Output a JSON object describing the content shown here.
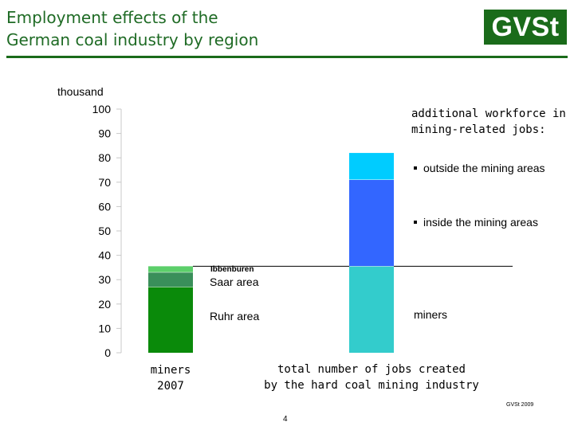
{
  "header": {
    "title_line1": "Employment effects of the",
    "title_line2": "German coal industry by region",
    "logo_text": "GVSt"
  },
  "chart_data": {
    "type": "bar",
    "unit_label": "thousand",
    "ylim": [
      0,
      100
    ],
    "yticks": [
      0,
      10,
      20,
      30,
      40,
      50,
      60,
      70,
      80,
      90,
      100
    ],
    "categories": [
      "miners 2007",
      "total number of jobs created by the hard coal mining industry"
    ],
    "bars": [
      {
        "name": "miners 2007",
        "segments": [
          {
            "name": "Ruhr area",
            "value": 27,
            "color": "#0a8a0a"
          },
          {
            "name": "Saar area",
            "value": 6,
            "color": "#3a8f5a"
          },
          {
            "name": "Ibbenburen",
            "value": 2.5,
            "color": "#5ccf6a"
          }
        ]
      },
      {
        "name": "total number of jobs created by the hard coal mining industry",
        "segments": [
          {
            "name": "miners",
            "value": 35.5,
            "color": "#33cccc"
          },
          {
            "name": "inside the mining areas",
            "value": 35.5,
            "color": "#3366ff"
          },
          {
            "name": "outside the mining areas",
            "value": 11,
            "color": "#00ccff"
          }
        ]
      }
    ],
    "reference_line": 35.5,
    "grid": false
  },
  "labels": {
    "ibbenburen": "Ibbenburen",
    "saar": "Saar area",
    "ruhr": "Ruhr area",
    "miners": "miners",
    "additional_line1": "additional workforce in",
    "additional_line2": "mining-related jobs:",
    "outside": "outside the mining areas",
    "inside": "inside the mining areas",
    "cat1_line1": "miners",
    "cat1_line2": "2007",
    "cat2_line1": "total number of jobs created",
    "cat2_line2": "by the hard coal mining industry"
  },
  "footer": {
    "source": "GVSt 2009",
    "page_number": "4"
  }
}
